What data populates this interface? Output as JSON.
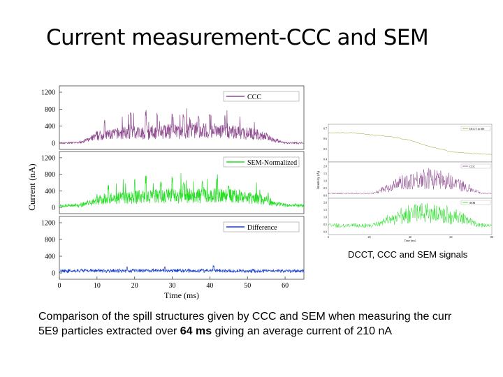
{
  "slide": {
    "title": "Current measurement-CCC and SEM",
    "caption_right": "DCCT, CCC and SEM signals",
    "comment_line1": "Comparison of the spill structures given by CCC and SEM when measuring the curr",
    "comment_line2_a": "5E9 particles extracted over ",
    "comment_line2_bold": "64 ms",
    "comment_line2_b": " giving an average current of 210 nA"
  },
  "chart_data": [
    {
      "type": "line",
      "ylabel": "Current (nA)",
      "xlabel": "Time (ms)",
      "xlim": [
        0,
        65
      ],
      "x_ticks": [
        "0",
        "10",
        "20",
        "30",
        "40",
        "50",
        "60"
      ],
      "ylim": [
        -150,
        1350
      ],
      "y_ticks": [
        "0",
        "400",
        "800",
        "1200"
      ],
      "series": [
        {
          "name": "CCC",
          "color": "#8e4a8e",
          "envelope": [
            [
              0,
              0
            ],
            [
              5,
              10
            ],
            [
              8,
              90
            ],
            [
              10,
              180
            ],
            [
              15,
              230
            ],
            [
              20,
              260
            ],
            [
              25,
              270
            ],
            [
              30,
              290
            ],
            [
              35,
              300
            ],
            [
              40,
              300
            ],
            [
              45,
              290
            ],
            [
              50,
              250
            ],
            [
              55,
              160
            ],
            [
              58,
              60
            ],
            [
              60,
              0
            ],
            [
              65,
              0
            ]
          ],
          "peaks": [
            [
              12,
              520
            ],
            [
              19,
              720
            ],
            [
              23,
              800
            ],
            [
              26,
              660
            ],
            [
              30,
              720
            ],
            [
              33,
              640
            ],
            [
              37,
              700
            ],
            [
              40,
              620
            ],
            [
              44,
              560
            ],
            [
              48,
              420
            ]
          ]
        },
        {
          "name": "SEM-Normalized",
          "color": "#22dd22",
          "envelope": [
            [
              0,
              40
            ],
            [
              5,
              50
            ],
            [
              8,
              120
            ],
            [
              10,
              200
            ],
            [
              15,
              240
            ],
            [
              20,
              270
            ],
            [
              25,
              280
            ],
            [
              30,
              300
            ],
            [
              35,
              300
            ],
            [
              40,
              310
            ],
            [
              45,
              300
            ],
            [
              50,
              260
            ],
            [
              55,
              180
            ],
            [
              58,
              90
            ],
            [
              60,
              60
            ],
            [
              65,
              40
            ]
          ],
          "peaks": [
            [
              13,
              500
            ],
            [
              20,
              650
            ],
            [
              23,
              720
            ],
            [
              27,
              620
            ],
            [
              30,
              700
            ],
            [
              33,
              560
            ],
            [
              38,
              640
            ],
            [
              42,
              680
            ],
            [
              45,
              480
            ]
          ]
        },
        {
          "name": "Difference",
          "color": "#1a3fd0",
          "envelope": [
            [
              0,
              50
            ],
            [
              30,
              60
            ],
            [
              65,
              50
            ]
          ],
          "peaks": [
            [
              41,
              180
            ],
            [
              28,
              160
            ],
            [
              18,
              150
            ]
          ]
        }
      ]
    },
    {
      "type": "line",
      "series": [
        {
          "name": "DCCT in SIS",
          "color": "#9a9a1a"
        },
        {
          "name": "CCC",
          "color": "#8e4a8e"
        },
        {
          "name": "SEM",
          "color": "#22dd22"
        }
      ],
      "xlabel": "Time (ms)",
      "ylabel": "Intensity (A)",
      "xlim": [
        0,
        80
      ],
      "x_ticks": [
        "0",
        "20",
        "40",
        "60",
        "80"
      ],
      "top_y_ticks": [
        "0.7",
        "0.6",
        "0.5",
        "0.4"
      ],
      "mid_y_ticks": [
        "2.0",
        "1.5",
        "1.0",
        "0.5",
        "0.0"
      ],
      "bot_y_ticks": [
        "2.0",
        "1.5",
        "1.0",
        "0.5",
        "0.0"
      ],
      "dcct": [
        [
          0,
          0.66
        ],
        [
          12,
          0.66
        ],
        [
          20,
          0.64
        ],
        [
          30,
          0.62
        ],
        [
          40,
          0.58
        ],
        [
          50,
          0.51
        ],
        [
          60,
          0.46
        ],
        [
          70,
          0.44
        ],
        [
          80,
          0.43
        ]
      ]
    }
  ]
}
